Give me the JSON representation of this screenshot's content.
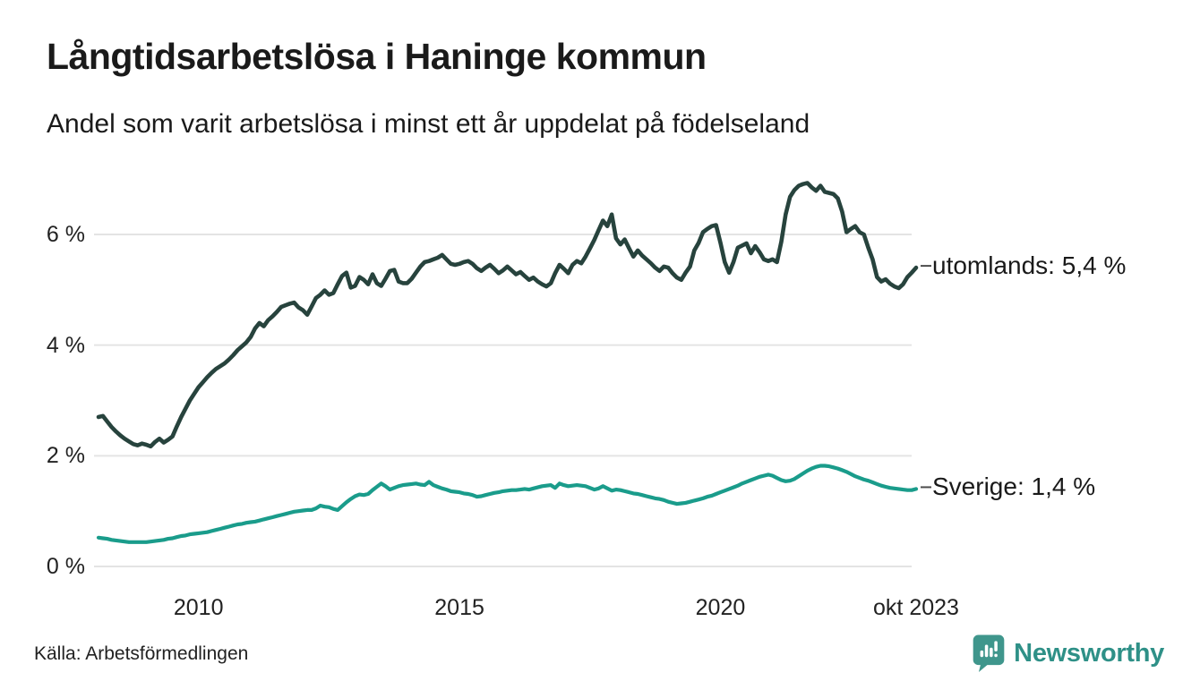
{
  "header": {
    "title": "Långtidsarbetslösa i Haninge kommun",
    "subtitle": "Andel som varit arbetslösa i minst ett år uppdelat på födelseland"
  },
  "footer": {
    "source": "Källa: Arbetsförmedlingen",
    "brand": "Newsworthy",
    "brand_icon": "newsworthy-speech-bubble-bar-chart"
  },
  "colors": {
    "utomlands_line": "#27433d",
    "sverige_line": "#1a9c8b",
    "grid": "#e4e4e4",
    "connector": "#4d4d4d",
    "text": "#1a1a1a",
    "tick_text": "#222222",
    "brand_icon": "#3f968c",
    "brand_text": "#2e9087"
  },
  "chart_data": {
    "type": "line",
    "title": "Långtidsarbetslösa i Haninge kommun",
    "subtitle": "Andel som varit arbetslösa i minst ett år uppdelat på födelseland",
    "unit": "%",
    "frequency": "monthly",
    "x_start": "2008-02",
    "x_end": "2023-10",
    "ylim": [
      0,
      7
    ],
    "grid": "horizontal",
    "legend_position": "right-end-labels",
    "yticks": [
      0,
      2,
      4,
      6
    ],
    "ytick_labels": [
      "0 %",
      "2 %",
      "4 %",
      "6 %"
    ],
    "xticks": [
      {
        "label": "2010",
        "month_index": 23
      },
      {
        "label": "2015",
        "month_index": 83
      },
      {
        "label": "2020",
        "month_index": 143
      },
      {
        "label": "okt 2023",
        "month_index": 188
      }
    ],
    "series": [
      {
        "name": "utomlands",
        "label": "utomlands: 5,4 %",
        "end_value": 5.4,
        "color": "#27433d",
        "values": [
          2.7,
          2.72,
          2.62,
          2.52,
          2.44,
          2.37,
          2.31,
          2.26,
          2.21,
          2.19,
          2.22,
          2.2,
          2.17,
          2.25,
          2.31,
          2.24,
          2.29,
          2.35,
          2.53,
          2.7,
          2.85,
          3.0,
          3.12,
          3.24,
          3.33,
          3.42,
          3.5,
          3.57,
          3.62,
          3.67,
          3.74,
          3.82,
          3.91,
          3.98,
          4.05,
          4.15,
          4.3,
          4.4,
          4.34,
          4.45,
          4.52,
          4.6,
          4.69,
          4.72,
          4.75,
          4.77,
          4.68,
          4.63,
          4.55,
          4.7,
          4.85,
          4.91,
          4.99,
          4.91,
          4.94,
          5.1,
          5.25,
          5.31,
          5.04,
          5.07,
          5.23,
          5.18,
          5.1,
          5.28,
          5.12,
          5.07,
          5.2,
          5.34,
          5.36,
          5.15,
          5.12,
          5.12,
          5.2,
          5.31,
          5.42,
          5.5,
          5.52,
          5.55,
          5.58,
          5.63,
          5.55,
          5.47,
          5.45,
          5.47,
          5.5,
          5.52,
          5.47,
          5.39,
          5.34,
          5.4,
          5.45,
          5.38,
          5.3,
          5.35,
          5.42,
          5.35,
          5.28,
          5.32,
          5.25,
          5.18,
          5.22,
          5.15,
          5.1,
          5.06,
          5.12,
          5.3,
          5.45,
          5.38,
          5.3,
          5.45,
          5.52,
          5.48,
          5.6,
          5.75,
          5.9,
          6.08,
          6.25,
          6.15,
          6.36,
          5.93,
          5.82,
          5.91,
          5.75,
          5.6,
          5.71,
          5.62,
          5.55,
          5.48,
          5.4,
          5.34,
          5.42,
          5.4,
          5.3,
          5.22,
          5.18,
          5.31,
          5.42,
          5.71,
          5.85,
          6.04,
          6.1,
          6.15,
          6.17,
          5.85,
          5.5,
          5.31,
          5.5,
          5.76,
          5.8,
          5.84,
          5.66,
          5.79,
          5.68,
          5.55,
          5.52,
          5.55,
          5.5,
          5.87,
          6.36,
          6.68,
          6.8,
          6.88,
          6.91,
          6.93,
          6.85,
          6.79,
          6.88,
          6.77,
          6.75,
          6.73,
          6.65,
          6.41,
          6.04,
          6.1,
          6.15,
          6.04,
          6.0,
          5.76,
          5.55,
          5.23,
          5.15,
          5.19,
          5.11,
          5.06,
          5.03,
          5.1,
          5.23,
          5.31,
          5.4
        ]
      },
      {
        "name": "Sverige",
        "label": "Sverige: 1,4 %",
        "end_value": 1.4,
        "color": "#1a9c8b",
        "values": [
          0.52,
          0.51,
          0.5,
          0.48,
          0.47,
          0.46,
          0.45,
          0.44,
          0.44,
          0.44,
          0.44,
          0.44,
          0.45,
          0.46,
          0.47,
          0.48,
          0.5,
          0.51,
          0.53,
          0.55,
          0.56,
          0.58,
          0.59,
          0.6,
          0.61,
          0.62,
          0.64,
          0.66,
          0.68,
          0.7,
          0.72,
          0.74,
          0.76,
          0.77,
          0.79,
          0.8,
          0.81,
          0.83,
          0.85,
          0.87,
          0.89,
          0.91,
          0.93,
          0.95,
          0.97,
          0.99,
          1.0,
          1.01,
          1.02,
          1.02,
          1.05,
          1.1,
          1.08,
          1.07,
          1.04,
          1.02,
          1.09,
          1.16,
          1.22,
          1.27,
          1.3,
          1.29,
          1.31,
          1.38,
          1.44,
          1.5,
          1.45,
          1.39,
          1.42,
          1.45,
          1.47,
          1.48,
          1.49,
          1.5,
          1.48,
          1.47,
          1.53,
          1.47,
          1.44,
          1.41,
          1.39,
          1.36,
          1.35,
          1.34,
          1.32,
          1.31,
          1.29,
          1.26,
          1.27,
          1.29,
          1.31,
          1.33,
          1.34,
          1.36,
          1.37,
          1.38,
          1.38,
          1.39,
          1.4,
          1.39,
          1.41,
          1.43,
          1.45,
          1.46,
          1.47,
          1.42,
          1.5,
          1.47,
          1.45,
          1.46,
          1.47,
          1.46,
          1.45,
          1.42,
          1.39,
          1.41,
          1.45,
          1.41,
          1.37,
          1.39,
          1.38,
          1.36,
          1.34,
          1.32,
          1.31,
          1.29,
          1.27,
          1.25,
          1.23,
          1.22,
          1.2,
          1.17,
          1.15,
          1.13,
          1.14,
          1.15,
          1.17,
          1.19,
          1.21,
          1.23,
          1.26,
          1.28,
          1.31,
          1.34,
          1.37,
          1.4,
          1.43,
          1.46,
          1.5,
          1.53,
          1.56,
          1.59,
          1.62,
          1.64,
          1.66,
          1.64,
          1.6,
          1.56,
          1.54,
          1.55,
          1.58,
          1.63,
          1.68,
          1.73,
          1.77,
          1.8,
          1.82,
          1.82,
          1.81,
          1.79,
          1.77,
          1.74,
          1.71,
          1.67,
          1.63,
          1.6,
          1.57,
          1.55,
          1.52,
          1.49,
          1.46,
          1.44,
          1.42,
          1.41,
          1.4,
          1.39,
          1.38,
          1.38,
          1.4
        ]
      }
    ]
  }
}
